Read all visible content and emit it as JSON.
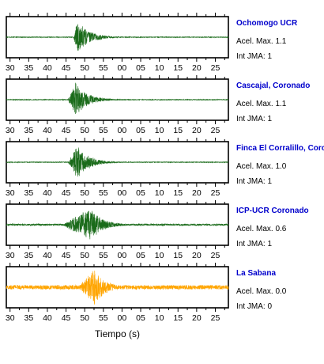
{
  "chart_data": {
    "type": "line",
    "title": "",
    "xlabel": "Tiempo (s)",
    "ylabel": "",
    "x_tick_labels": [
      "30",
      "35",
      "40",
      "45",
      "50",
      "55",
      "00",
      "05",
      "10",
      "15",
      "20",
      "25"
    ],
    "grid": false,
    "panels": [
      {
        "station": "Ochomogo UCR",
        "accel_label": "Acel. Max. 1.1",
        "jma_label": "Int JMA: 1",
        "color": "#1a6b1a",
        "onset_tick": 47,
        "peak_tick": 48,
        "relative_peak_amplitude": 0.92,
        "background_noise": 0.02
      },
      {
        "station": "Cascajal, Coronado",
        "accel_label": "Acel. Max. 1.1",
        "jma_label": "Int JMA: 1",
        "color": "#1a6b1a",
        "onset_tick": 45.5,
        "peak_tick": 47.5,
        "relative_peak_amplitude": 0.95,
        "background_noise": 0.02
      },
      {
        "station": "Finca El Corralillo, Coronado",
        "accel_label": "Acel. Max. 1.0",
        "jma_label": "Int JMA: 1",
        "color": "#1a6b1a",
        "onset_tick": 45.5,
        "peak_tick": 48,
        "relative_peak_amplitude": 0.9,
        "background_noise": 0.02
      },
      {
        "station": "ICP-UCR Coronado",
        "accel_label": "Acel. Max. 0.6",
        "jma_label": "Int JMA: 1",
        "color": "#1a6b1a",
        "onset_tick": 44,
        "peak_tick": 51.5,
        "relative_peak_amplitude": 0.92,
        "background_noise": 0.05
      },
      {
        "station": "La Sabana",
        "accel_label": "Acel. Max. 0.0",
        "jma_label": "Int JMA: 0",
        "color": "#ffa500",
        "onset_tick": 48,
        "peak_tick": 52.5,
        "relative_peak_amplitude": 0.95,
        "background_noise": 0.12
      }
    ]
  }
}
